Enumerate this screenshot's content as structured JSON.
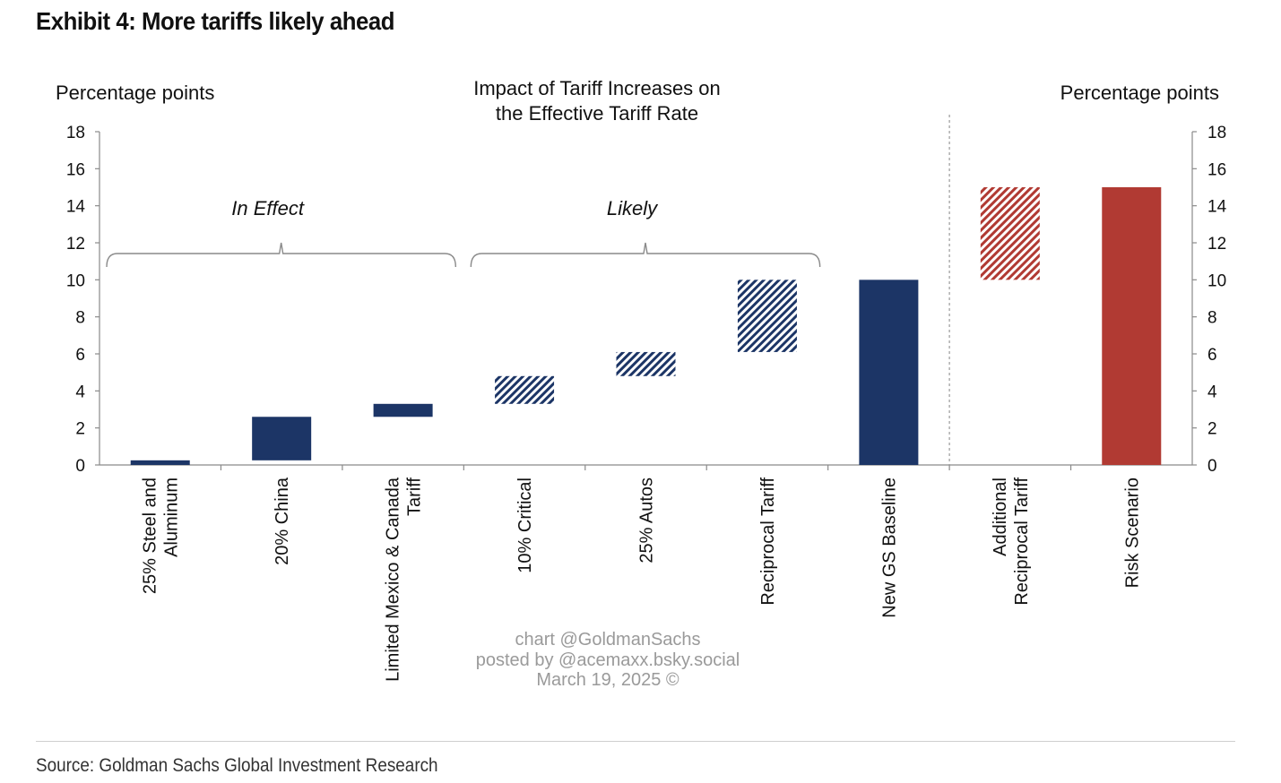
{
  "header": {
    "exhibit_title": "Exhibit 4: More tariffs likely ahead"
  },
  "footer": {
    "source": "Source: Goldman Sachs Global Investment Research"
  },
  "watermark": {
    "line1": "chart @GoldmanSachs",
    "line2": "posted by @acemaxx.bsky.social",
    "line3": "March 19, 2025 ©"
  },
  "colors": {
    "navy": "#1c3566",
    "red": "#b13a33",
    "axis": "#8a8a8a",
    "text": "#111111"
  },
  "chart_data": {
    "type": "bar",
    "subtype": "waterfall-range",
    "title": "Impact of Tariff Increases on the Effective Tariff Rate",
    "title_lines": [
      "Impact of Tariff Increases on",
      "the Effective Tariff Rate"
    ],
    "ylabel_left": "Percentage points",
    "ylabel_right": "Percentage points",
    "ylim": [
      0,
      18
    ],
    "yticks": [
      0,
      2,
      4,
      6,
      8,
      10,
      12,
      14,
      16,
      18
    ],
    "categories": [
      [
        "25% Steel and",
        "Aluminum"
      ],
      [
        "20% China"
      ],
      [
        "Limited Mexico & Canada",
        "Tariff"
      ],
      [
        "10% Critical"
      ],
      [
        "25% Autos"
      ],
      [
        "Reciprocal Tariff"
      ],
      [
        "New GS Baseline"
      ],
      [
        "Additional",
        "Reciprocal Tariff"
      ],
      [
        "Risk Scenario"
      ]
    ],
    "bars": [
      {
        "low": 0.0,
        "high": 0.25,
        "color": "navy",
        "pattern": "solid"
      },
      {
        "low": 0.25,
        "high": 2.6,
        "color": "navy",
        "pattern": "solid"
      },
      {
        "low": 2.6,
        "high": 3.3,
        "color": "navy",
        "pattern": "solid"
      },
      {
        "low": 3.3,
        "high": 4.8,
        "color": "navy",
        "pattern": "hatched"
      },
      {
        "low": 4.8,
        "high": 6.1,
        "color": "navy",
        "pattern": "hatched"
      },
      {
        "low": 6.1,
        "high": 10.0,
        "color": "navy",
        "pattern": "hatched"
      },
      {
        "low": 0.0,
        "high": 10.0,
        "color": "navy",
        "pattern": "solid"
      },
      {
        "low": 10.0,
        "high": 15.0,
        "color": "red",
        "pattern": "hatched"
      },
      {
        "low": 0.0,
        "high": 15.0,
        "color": "red",
        "pattern": "solid"
      }
    ],
    "groups": [
      {
        "label": "In Effect",
        "from_index": 0,
        "to_index": 2
      },
      {
        "label": "Likely",
        "from_index": 3,
        "to_index": 5
      }
    ],
    "divider_after_index": 6
  }
}
